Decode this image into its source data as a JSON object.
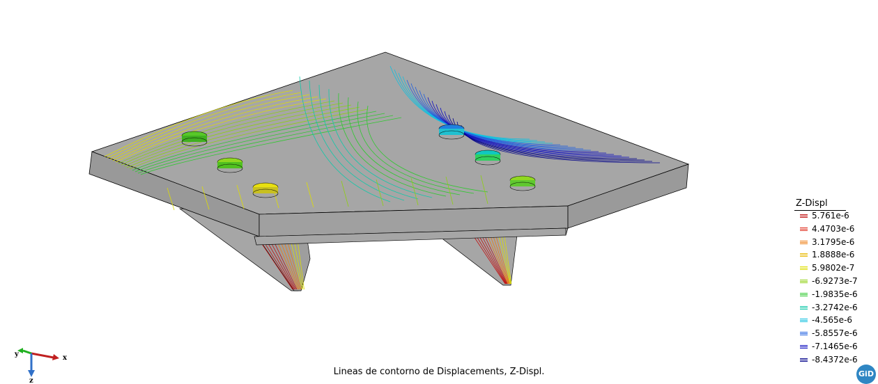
{
  "legend": {
    "title": "Z-Displ",
    "entries": [
      {
        "value": "5.761e-6",
        "color": "#c01010"
      },
      {
        "value": "4.4703e-6",
        "color": "#e03020"
      },
      {
        "value": "3.1795e-6",
        "color": "#ee7c10"
      },
      {
        "value": "1.8888e-6",
        "color": "#e8b800"
      },
      {
        "value": "5.9802e-7",
        "color": "#dede00"
      },
      {
        "value": "-6.9273e-7",
        "color": "#8ed010"
      },
      {
        "value": "-1.9835e-6",
        "color": "#30c830"
      },
      {
        "value": "-3.2742e-6",
        "color": "#10c8a8"
      },
      {
        "value": "-4.565e-6",
        "color": "#10c0e0"
      },
      {
        "value": "-5.8557e-6",
        "color": "#2060e0"
      },
      {
        "value": "-7.1465e-6",
        "color": "#1010c0"
      },
      {
        "value": "-8.4372e-6",
        "color": "#00008a"
      }
    ]
  },
  "caption": "Lineas de contorno de Displacements, Z-Displ.",
  "axes": {
    "x": "x",
    "y": "y",
    "z": "z"
  },
  "logo": "GiD",
  "colors": {
    "surface": "#a6a6a6",
    "edge": "#000000",
    "background": "#ffffff"
  }
}
